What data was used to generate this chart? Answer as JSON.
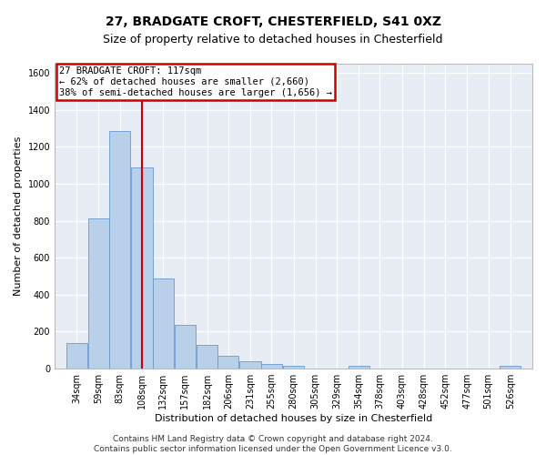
{
  "title_line1": "27, BRADGATE CROFT, CHESTERFIELD, S41 0XZ",
  "title_line2": "Size of property relative to detached houses in Chesterfield",
  "xlabel": "Distribution of detached houses by size in Chesterfield",
  "ylabel": "Number of detached properties",
  "footer_line1": "Contains HM Land Registry data © Crown copyright and database right 2024.",
  "footer_line2": "Contains public sector information licensed under the Open Government Licence v3.0.",
  "bar_color": "#b8d0e8",
  "bar_edge_color": "#6699cc",
  "background_color": "#e8ecf4",
  "annotation_line1": "27 BRADGATE CROFT: 117sqm",
  "annotation_line2": "← 62% of detached houses are smaller (2,660)",
  "annotation_line3": "38% of semi-detached houses are larger (1,656) →",
  "annotation_box_color": "#ffffff",
  "annotation_box_edge": "#cc0000",
  "vline_color": "#cc0000",
  "vline_bin_index": 3,
  "categories": [
    "34sqm",
    "59sqm",
    "83sqm",
    "108sqm",
    "132sqm",
    "157sqm",
    "182sqm",
    "206sqm",
    "231sqm",
    "255sqm",
    "280sqm",
    "305sqm",
    "329sqm",
    "354sqm",
    "378sqm",
    "403sqm",
    "428sqm",
    "452sqm",
    "477sqm",
    "501sqm",
    "526sqm"
  ],
  "bin_centers": [
    34,
    59,
    83,
    108,
    132,
    157,
    182,
    206,
    231,
    255,
    280,
    305,
    329,
    354,
    378,
    403,
    428,
    452,
    477,
    501,
    526
  ],
  "bin_width": 25,
  "values": [
    140,
    815,
    1285,
    1090,
    490,
    238,
    130,
    68,
    38,
    27,
    14,
    0,
    0,
    14,
    0,
    0,
    0,
    0,
    0,
    0,
    14
  ],
  "ylim": [
    0,
    1650
  ],
  "yticks": [
    0,
    200,
    400,
    600,
    800,
    1000,
    1200,
    1400,
    1600
  ],
  "grid_color": "#ffffff",
  "title_fontsize": 10,
  "subtitle_fontsize": 9,
  "ylabel_fontsize": 8,
  "xlabel_fontsize": 8,
  "tick_fontsize": 7,
  "footer_fontsize": 6.5
}
